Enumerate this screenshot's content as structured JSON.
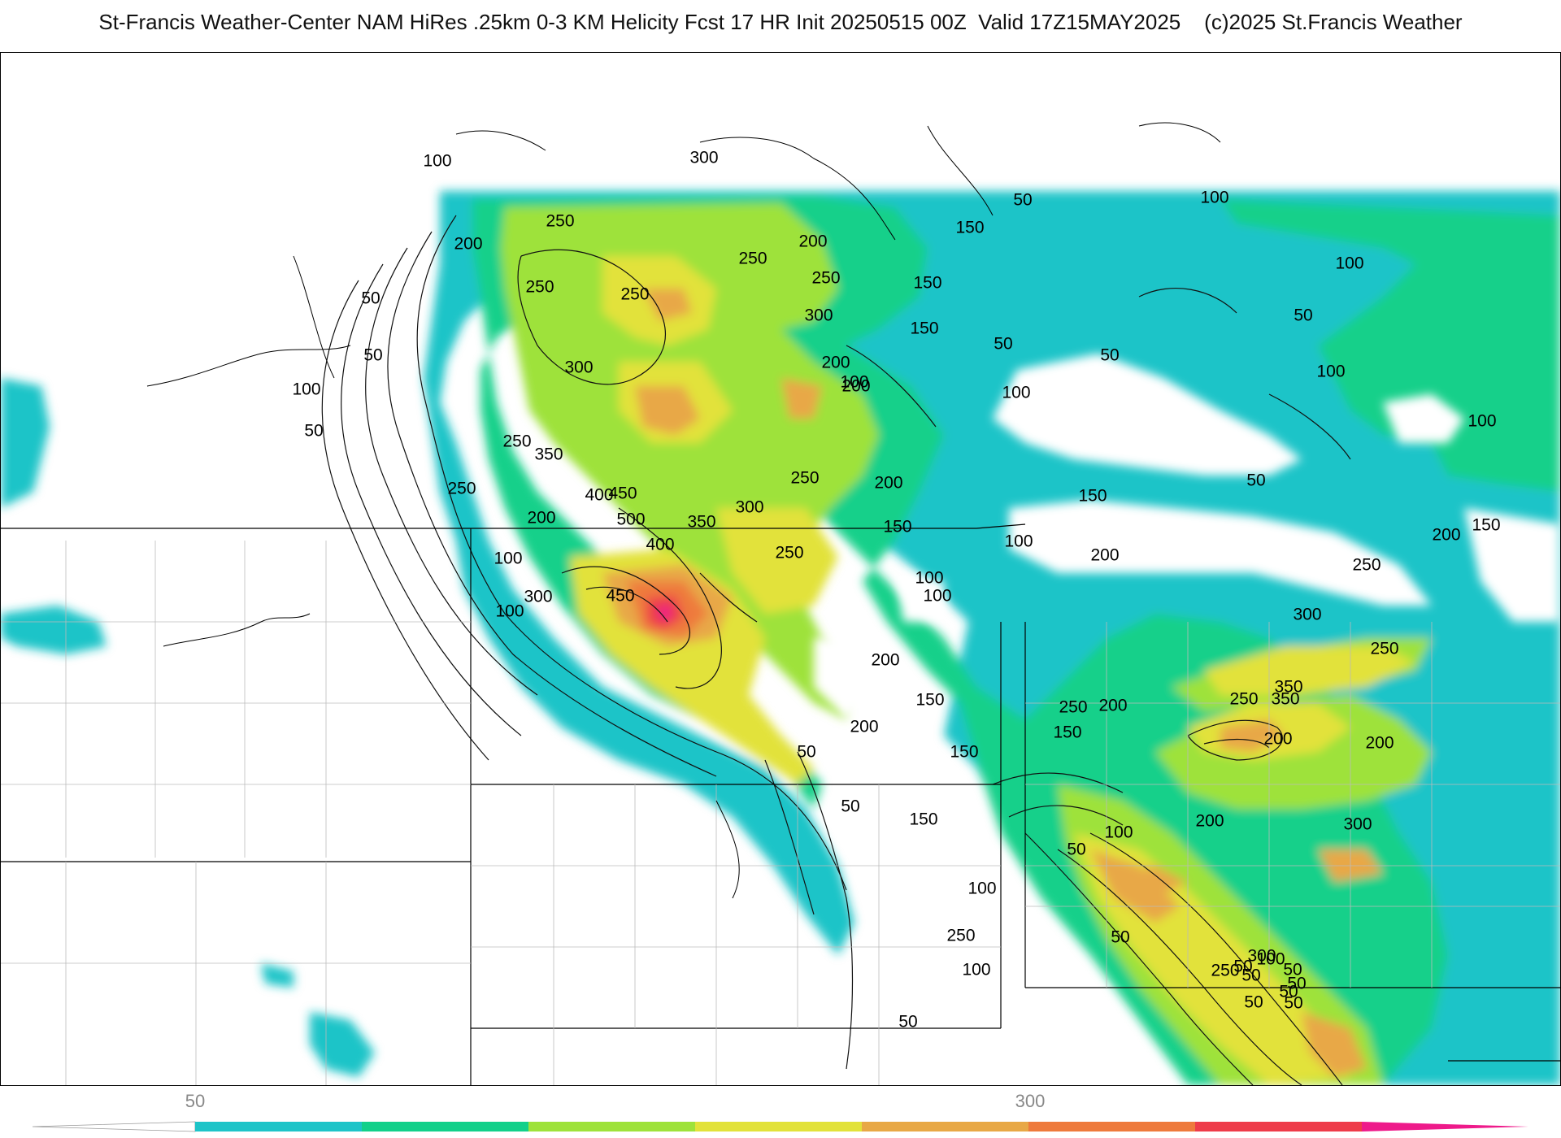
{
  "title": "St-Francis Weather-Center NAM HiRes .25km 0-3 KM Helicity Fcst 17 HR Init 20250515 00Z  Valid 17Z15MAY2025    (c)2025 St.Francis Weather",
  "colorbar": {
    "tick_labels": [
      "50",
      "300"
    ],
    "colors": [
      "#1ec4c8",
      "#12d08a",
      "#9ee23a",
      "#e2e23a",
      "#e8a846",
      "#ee7a3c",
      "#ee3c4a",
      "#ee1a8a"
    ],
    "levels": [
      50,
      100,
      150,
      200,
      250,
      300,
      350,
      400,
      450
    ]
  },
  "contour_labels": [
    "100",
    "300",
    "250",
    "200",
    "150",
    "50",
    "250",
    "250",
    "250",
    "300",
    "200",
    "250",
    "150",
    "100",
    "150",
    "50",
    "300",
    "200",
    "200",
    "100",
    "100",
    "250",
    "350",
    "400",
    "450",
    "500",
    "250",
    "200",
    "100",
    "50",
    "450",
    "400",
    "350",
    "300",
    "250",
    "200",
    "250",
    "150",
    "100",
    "100",
    "200",
    "50",
    "100",
    "50",
    "100",
    "100",
    "200",
    "150",
    "250",
    "300",
    "250",
    "350",
    "50",
    "50",
    "150",
    "250",
    "100",
    "200",
    "150",
    "200",
    "50",
    "50",
    "100",
    "300",
    "350",
    "200",
    "300",
    "100",
    "150",
    "250",
    "200",
    "150",
    "50",
    "100",
    "200",
    "200",
    "50",
    "250",
    "150",
    "100",
    "50",
    "50",
    "300",
    "250",
    "50",
    "100",
    "50",
    "50",
    "50",
    "50",
    "50",
    "50",
    "100"
  ]
}
